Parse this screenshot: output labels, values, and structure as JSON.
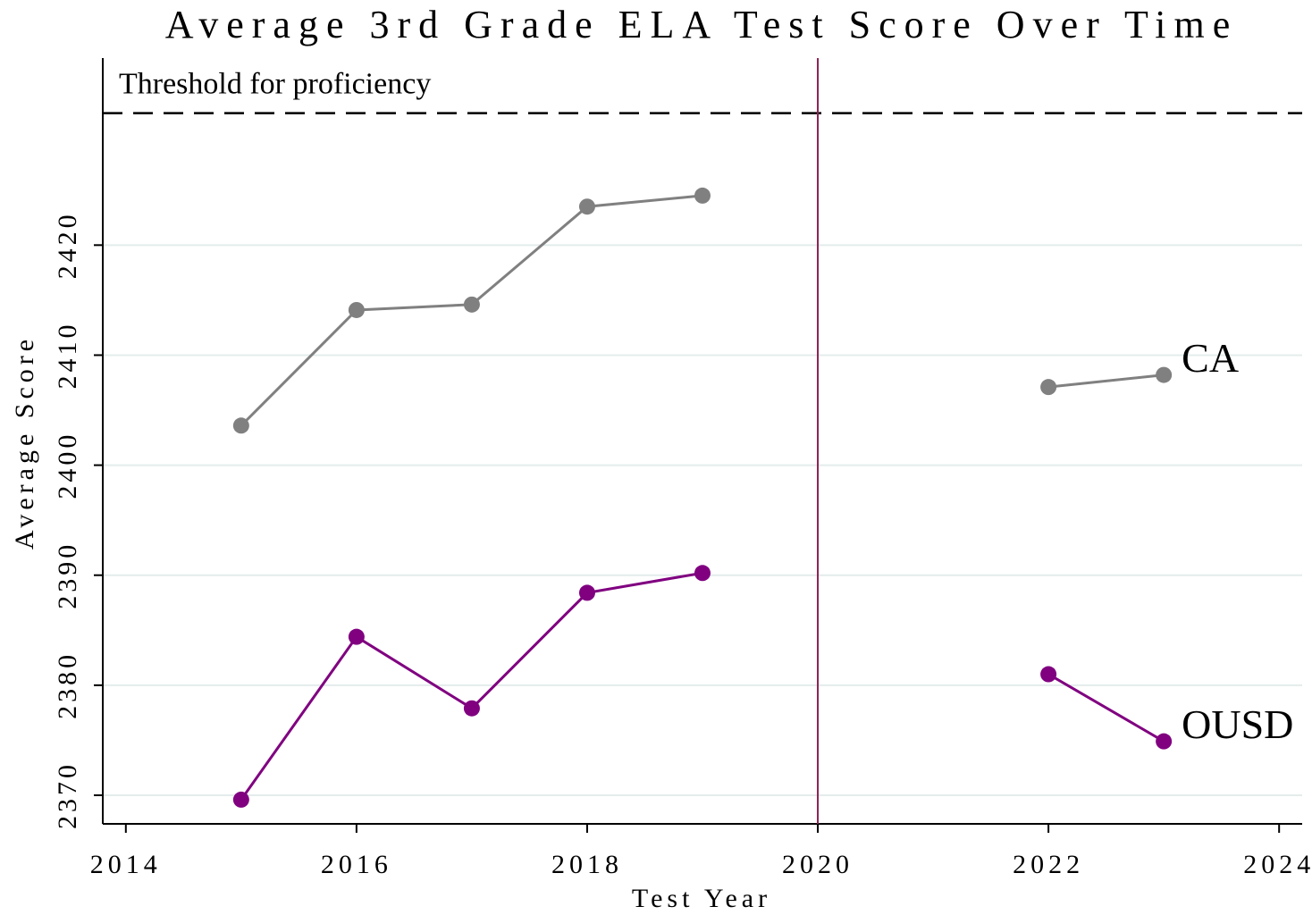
{
  "chart_data": {
    "type": "line",
    "title": "Average 3rd Grade ELA Test Score Over Time",
    "x_label": "Test Year",
    "y_label": "Average Score",
    "x": [
      2015,
      2016,
      2017,
      2018,
      2019,
      2020,
      2022,
      2023
    ],
    "series": [
      {
        "name": "CA",
        "color": "#808080",
        "values": [
          2403.6,
          2414.1,
          2414.6,
          2423.5,
          2424.5,
          null,
          2407.1,
          2408.2
        ]
      },
      {
        "name": "OUSD",
        "color": "#800080",
        "values": [
          2369.6,
          2384.4,
          2377.9,
          2388.4,
          2390.2,
          null,
          2381.0,
          2374.9
        ]
      }
    ],
    "threshold": {
      "label": "Threshold for proficiency",
      "value": 2432
    },
    "vline": {
      "value": 2020,
      "color": "#8b2252"
    },
    "xlim": [
      2013.8,
      2024.2
    ],
    "ylim": [
      2367.4,
      2437
    ],
    "xticks": [
      2014,
      2016,
      2018,
      2020,
      2022,
      2024
    ],
    "yticks": [
      2370,
      2380,
      2390,
      2400,
      2410,
      2420
    ],
    "grid": true
  }
}
